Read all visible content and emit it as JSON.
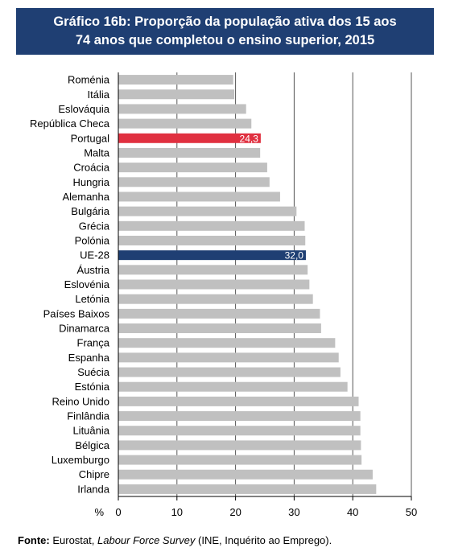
{
  "title": {
    "line1": "Gráfico 16b: Proporção da população ativa dos 15 aos",
    "line2": "74 anos que completou o ensino superior, 2015"
  },
  "source": {
    "label": "Fonte:",
    "pre": "Eurostat,",
    "italic": "Labour Force Survey",
    "post": "(INE, Inquérito ao Emprego)."
  },
  "colors": {
    "default_bar": "#c0c0c0",
    "portugal_bar": "#e03040",
    "eu_bar": "#1f3f73",
    "title_bg": "#1f3f73"
  },
  "chart_data": {
    "type": "bar",
    "orientation": "horizontal",
    "unit_label": "%",
    "xlim": [
      0,
      50
    ],
    "xticks": [
      0,
      10,
      20,
      30,
      40,
      50
    ],
    "grid": true,
    "categories": [
      "Roménia",
      "Itália",
      "Eslováquia",
      "República Checa",
      "Portugal",
      "Malta",
      "Croácia",
      "Hungria",
      "Alemanha",
      "Bulgária",
      "Grécia",
      "Polónia",
      "UE-28",
      "Áustria",
      "Eslovénia",
      "Letónia",
      "Países Baixos",
      "Dinamarca",
      "França",
      "Espanha",
      "Suécia",
      "Estónia",
      "Reino Unido",
      "Finlândia",
      "Lituânia",
      "Bélgica",
      "Luxemburgo",
      "Chipre",
      "Irlanda"
    ],
    "values": [
      19.6,
      19.8,
      21.8,
      22.7,
      24.3,
      24.2,
      25.4,
      25.8,
      27.6,
      30.4,
      31.8,
      31.9,
      32.0,
      32.3,
      32.6,
      33.2,
      34.4,
      34.6,
      37.0,
      37.6,
      37.9,
      39.1,
      41.0,
      41.3,
      41.3,
      41.4,
      41.5,
      43.4,
      44.0
    ],
    "highlights": {
      "Portugal": {
        "color_key": "portugal_bar",
        "label": "24,3"
      },
      "UE-28": {
        "color_key": "eu_bar",
        "label": "32,0"
      }
    }
  }
}
